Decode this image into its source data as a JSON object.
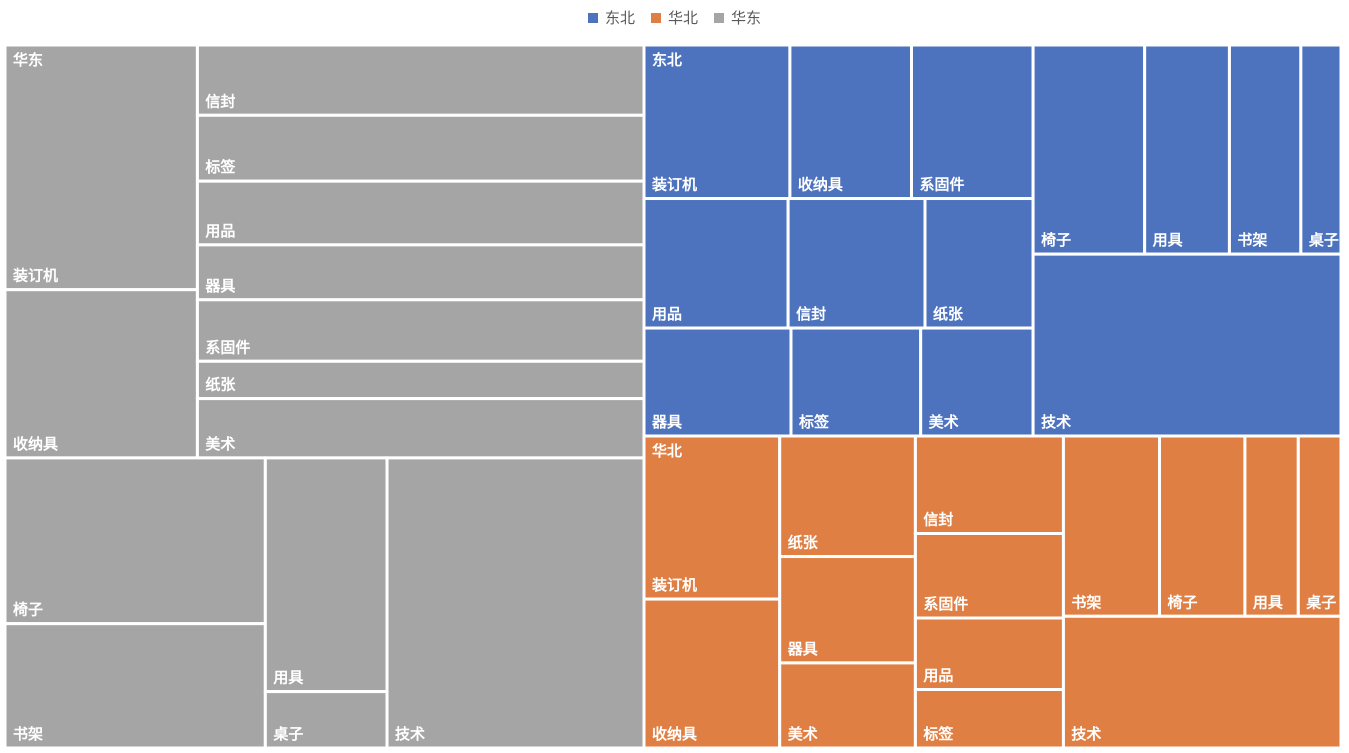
{
  "chart_data": {
    "type": "treemap",
    "legend": [
      {
        "name": "东北",
        "color": "#4e73be"
      },
      {
        "name": "华北",
        "color": "#e07f43"
      },
      {
        "name": "华东",
        "color": "#a5a5a5"
      }
    ],
    "regions": [
      {
        "name": "华东",
        "color": "#a5a5a5",
        "items": [
          {
            "name": "装订机",
            "value": 4.8
          },
          {
            "name": "信封",
            "value": 3.2
          },
          {
            "name": "标签",
            "value": 3.0
          },
          {
            "name": "收纳具",
            "value": 3.3
          },
          {
            "name": "用品",
            "value": 2.9
          },
          {
            "name": "器具",
            "value": 2.5
          },
          {
            "name": "系固件",
            "value": 2.8
          },
          {
            "name": "纸张",
            "value": 1.7
          },
          {
            "name": "美术",
            "value": 2.7
          },
          {
            "name": "椅子",
            "value": 4.4
          },
          {
            "name": "书架",
            "value": 3.3
          },
          {
            "name": "用具",
            "value": 2.9
          },
          {
            "name": "桌子",
            "value": 0.7
          },
          {
            "name": "技术",
            "value": 7.6
          }
        ]
      },
      {
        "name": "东北",
        "color": "#4e73be",
        "items": [
          {
            "name": "装订机",
            "value": 2.4
          },
          {
            "name": "收纳具",
            "value": 2.0
          },
          {
            "name": "系固件",
            "value": 2.0
          },
          {
            "name": "用品",
            "value": 2.0
          },
          {
            "name": "信封",
            "value": 1.9
          },
          {
            "name": "纸张",
            "value": 1.5
          },
          {
            "name": "器具",
            "value": 1.7
          },
          {
            "name": "标签",
            "value": 1.5
          },
          {
            "name": "美术",
            "value": 1.3
          },
          {
            "name": "椅子",
            "value": 2.5
          },
          {
            "name": "用具",
            "value": 1.9
          },
          {
            "name": "书架",
            "value": 1.6
          },
          {
            "name": "桌子",
            "value": 0.9
          },
          {
            "name": "技术",
            "value": 6.0
          }
        ]
      },
      {
        "name": "华北",
        "color": "#e07f43",
        "items": [
          {
            "name": "装订机",
            "value": 2.3
          },
          {
            "name": "纸张",
            "value": 1.7
          },
          {
            "name": "信封",
            "value": 1.5
          },
          {
            "name": "器具",
            "value": 1.5
          },
          {
            "name": "系固件",
            "value": 1.3
          },
          {
            "name": "收纳具",
            "value": 2.1
          },
          {
            "name": "美术",
            "value": 1.2
          },
          {
            "name": "用品",
            "value": 1.1
          },
          {
            "name": "标签",
            "value": 0.9
          },
          {
            "name": "书架",
            "value": 1.8
          },
          {
            "name": "椅子",
            "value": 1.6
          },
          {
            "name": "用具",
            "value": 1.0
          },
          {
            "name": "桌子",
            "value": 0.8
          },
          {
            "name": "技术",
            "value": 3.8
          }
        ]
      }
    ]
  }
}
